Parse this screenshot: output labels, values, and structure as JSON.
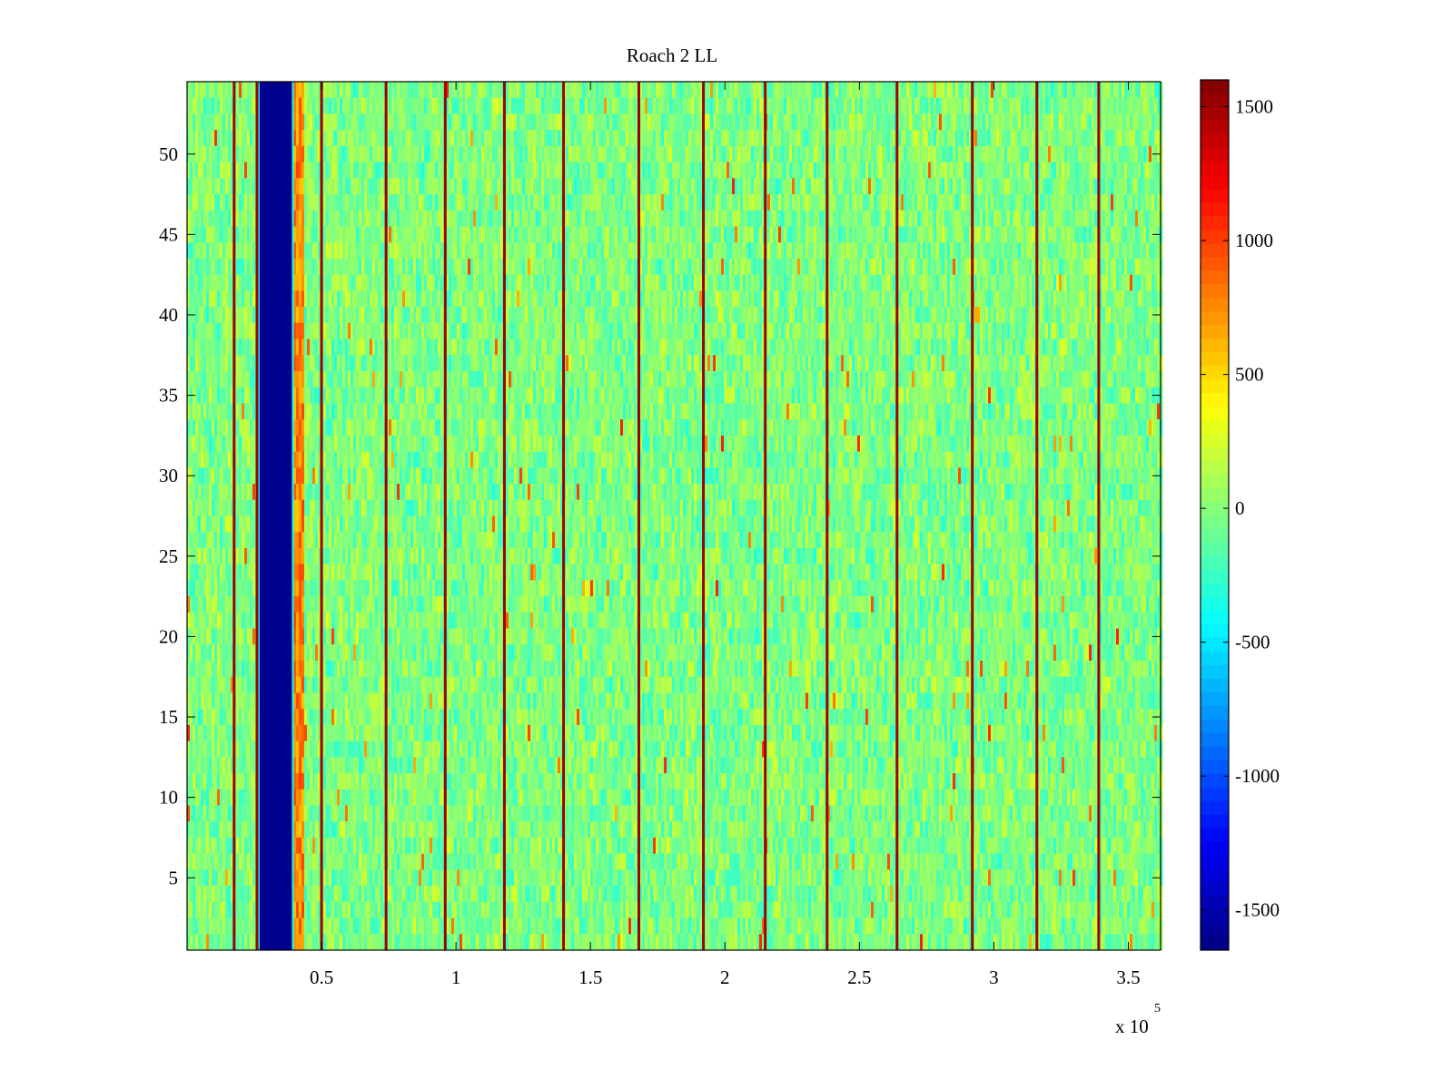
{
  "chart_data": {
    "type": "heatmap",
    "title": "Roach 2 LL",
    "xlabel": "",
    "ylabel": "",
    "x_multiplier_label": "x 10",
    "x_multiplier_exponent": "5",
    "xlim": [
      0,
      3.62
    ],
    "ylim": [
      0.5,
      54.5
    ],
    "x_ticks": [
      0.5,
      1,
      1.5,
      2,
      2.5,
      3,
      3.5
    ],
    "x_tick_labels": [
      "0.5",
      "1",
      "1.5",
      "2",
      "2.5",
      "3",
      "3.5"
    ],
    "y_ticks": [
      5,
      10,
      15,
      20,
      25,
      30,
      35,
      40,
      45,
      50
    ],
    "y_tick_labels": [
      "5",
      "10",
      "15",
      "20",
      "25",
      "30",
      "35",
      "40",
      "45",
      "50"
    ],
    "rows": 54,
    "colormap": "jet",
    "clim": [
      -1650,
      1600
    ],
    "colorbar_ticks": [
      1500,
      1000,
      500,
      0,
      -500,
      -1000,
      -1500
    ],
    "colorbar_tick_labels": [
      "1500",
      "1000",
      "500",
      "0",
      "-500",
      "-1000",
      "-1500"
    ],
    "background_value_range": [
      -350,
      300
    ],
    "low_band": {
      "x_start": 0.27,
      "x_end": 0.39,
      "value": -1600
    },
    "hot_band": {
      "x_start": 0.395,
      "x_end": 0.43,
      "value": 1000
    },
    "hot_lines_x": [
      0.175,
      0.26,
      0.5,
      0.74,
      0.96,
      1.18,
      1.4,
      1.68,
      1.92,
      2.15,
      2.38,
      2.64,
      2.92,
      3.16,
      3.39
    ],
    "hot_line_value": 1500,
    "grid": false,
    "colorbar": "right"
  }
}
